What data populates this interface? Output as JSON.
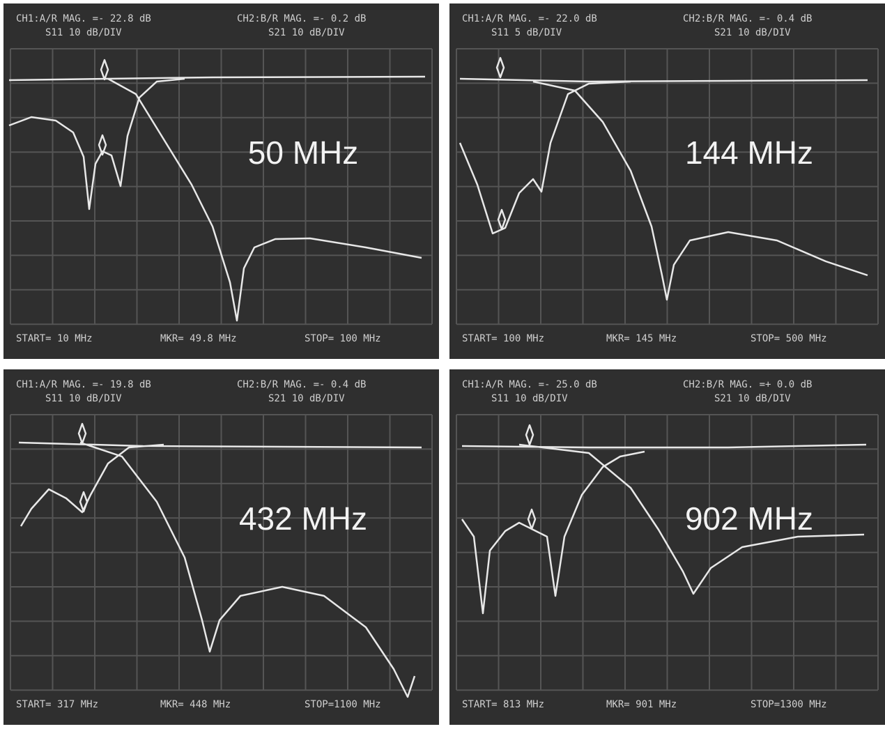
{
  "panels": [
    {
      "ch1": "CH1:A/R MAG. =- 22.8 dB",
      "s11": "S11 10 dB/DIV",
      "ch2": "CH2:B/R MAG. =- 0.2 dB",
      "s21": "S21 10 dB/DIV",
      "label": "50 MHz",
      "start": "START= 10 MHz",
      "mkr": "MKR= 49.8 MHz",
      "stop": "STOP= 100 MHz"
    },
    {
      "ch1": "CH1:A/R MAG. =- 22.0 dB",
      "s11": "S11 5 dB/DIV",
      "ch2": "CH2:B/R MAG. =- 0.4 dB",
      "s21": "S21 10 dB/DIV",
      "label": "144 MHz",
      "start": "START= 100 MHz",
      "mkr": "MKR= 145 MHz",
      "stop": "STOP= 500 MHz"
    },
    {
      "ch1": "CH1:A/R MAG. =- 19.8 dB",
      "s11": "S11 10 dB/DIV",
      "ch2": "CH2:B/R MAG. =- 0.4 dB",
      "s21": "S21 10 dB/DIV",
      "label": "432 MHz",
      "start": "START= 317 MHz",
      "mkr": "MKR= 448 MHz",
      "stop": "STOP=1100 MHz"
    },
    {
      "ch1": "CH1:A/R MAG. =- 25.0 dB",
      "s11": "S11 10 dB/DIV",
      "ch2": "CH2:B/R MAG. =+ 0.0 dB",
      "s21": "S21 10 dB/DIV",
      "label": "902 MHz",
      "start": "START= 813 MHz",
      "mkr": "MKR= 901 MHz",
      "stop": "STOP=1300 MHz"
    }
  ]
}
